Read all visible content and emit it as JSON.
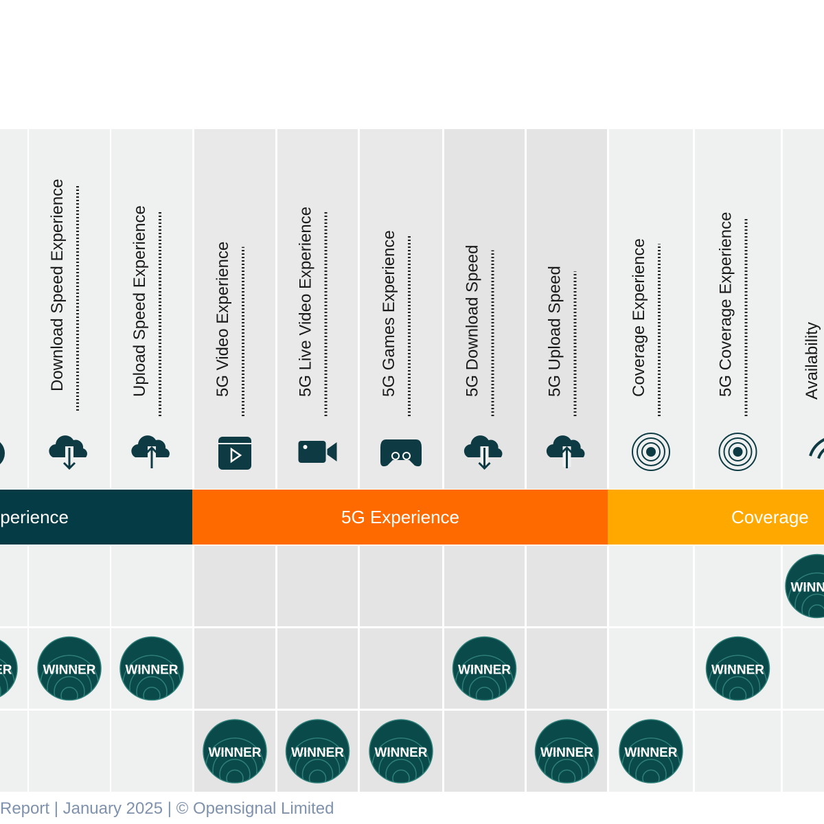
{
  "columns": [
    null,
    "Download Speed Experience",
    "Upload Speed Experience",
    "5G Video Experience",
    "5G Live Video Experience",
    "5G Games Experience",
    "5G Download Speed",
    "5G Upload Speed",
    "Coverage Experience",
    "5G Coverage Experience",
    "Availability"
  ],
  "groups": [
    "perience",
    "5G Experience",
    "Coverage"
  ],
  "rows": [
    [
      null,
      null,
      null,
      null,
      null,
      null,
      null,
      null,
      null,
      null,
      "WINNER"
    ],
    [
      "WINNER",
      "WINNER",
      "WINNER",
      null,
      null,
      null,
      "WINNER",
      null,
      null,
      "WINNER",
      null
    ],
    [
      null,
      null,
      null,
      "WINNER",
      "WINNER",
      "WINNER",
      null,
      "WINNER",
      "WINNER",
      null,
      null
    ]
  ],
  "footer": "Report | January 2025 | © Opensignal Limited"
}
